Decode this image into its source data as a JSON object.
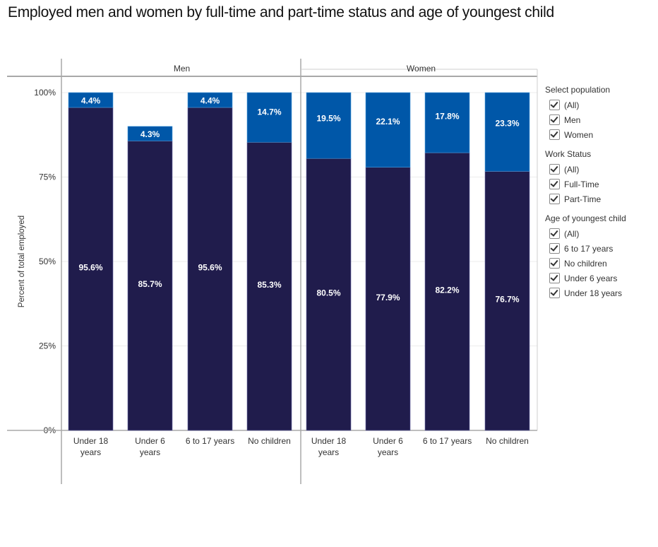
{
  "title": "Employed men and women by full-time and part-time status and age of youngest child",
  "chart_data": {
    "type": "bar",
    "stacked": true,
    "title": "Employed men and women by full-time and part-time status and age of youngest child",
    "ylabel": "Percent of total employed",
    "xlabel": "",
    "ylim": [
      0,
      100
    ],
    "yticks": [
      "0%",
      "25%",
      "50%",
      "75%",
      "100%"
    ],
    "ytick_values": [
      0,
      25,
      50,
      75,
      100
    ],
    "grid": true,
    "panels": [
      "Men",
      "Women"
    ],
    "categories": [
      "Under 18 years",
      "Under 6 years",
      "6 to 17 years",
      "No children"
    ],
    "category_labels": [
      [
        "Under 18",
        "years"
      ],
      [
        "Under 6",
        "years"
      ],
      [
        "6 to 17 years"
      ],
      [
        "No children"
      ]
    ],
    "series": [
      {
        "name": "Full-Time",
        "color": "#201c4c",
        "values": {
          "Men": [
            95.6,
            85.7,
            95.6,
            85.3
          ],
          "Women": [
            80.5,
            77.9,
            82.2,
            76.7
          ]
        },
        "labels": {
          "Men": [
            "95.6%",
            "85.7%",
            "95.6%",
            "85.3%"
          ],
          "Women": [
            "80.5%",
            "77.9%",
            "82.2%",
            "76.7%"
          ]
        }
      },
      {
        "name": "Part-Time",
        "color": "#0057a8",
        "values": {
          "Men": [
            4.4,
            4.3,
            4.4,
            14.7
          ],
          "Women": [
            19.5,
            22.1,
            17.8,
            23.3
          ]
        },
        "labels": {
          "Men": [
            "4.4%",
            "4.3%",
            "4.4%",
            "14.7%"
          ],
          "Women": [
            "19.5%",
            "22.1%",
            "17.8%",
            "23.3%"
          ]
        }
      }
    ]
  },
  "filters": [
    {
      "title": "Select population",
      "items": [
        {
          "label": "(All)",
          "checked": true
        },
        {
          "label": "Men",
          "checked": true
        },
        {
          "label": "Women",
          "checked": true
        }
      ]
    },
    {
      "title": "Work Status",
      "items": [
        {
          "label": "(All)",
          "checked": true
        },
        {
          "label": "Full-Time",
          "checked": true
        },
        {
          "label": "Part-Time",
          "checked": true
        }
      ]
    },
    {
      "title": "Age of youngest child",
      "items": [
        {
          "label": "(All)",
          "checked": true
        },
        {
          "label": "6 to 17 years",
          "checked": true
        },
        {
          "label": "No children",
          "checked": true
        },
        {
          "label": "Under 6 years",
          "checked": true
        },
        {
          "label": "Under 18 years",
          "checked": true
        }
      ]
    }
  ]
}
